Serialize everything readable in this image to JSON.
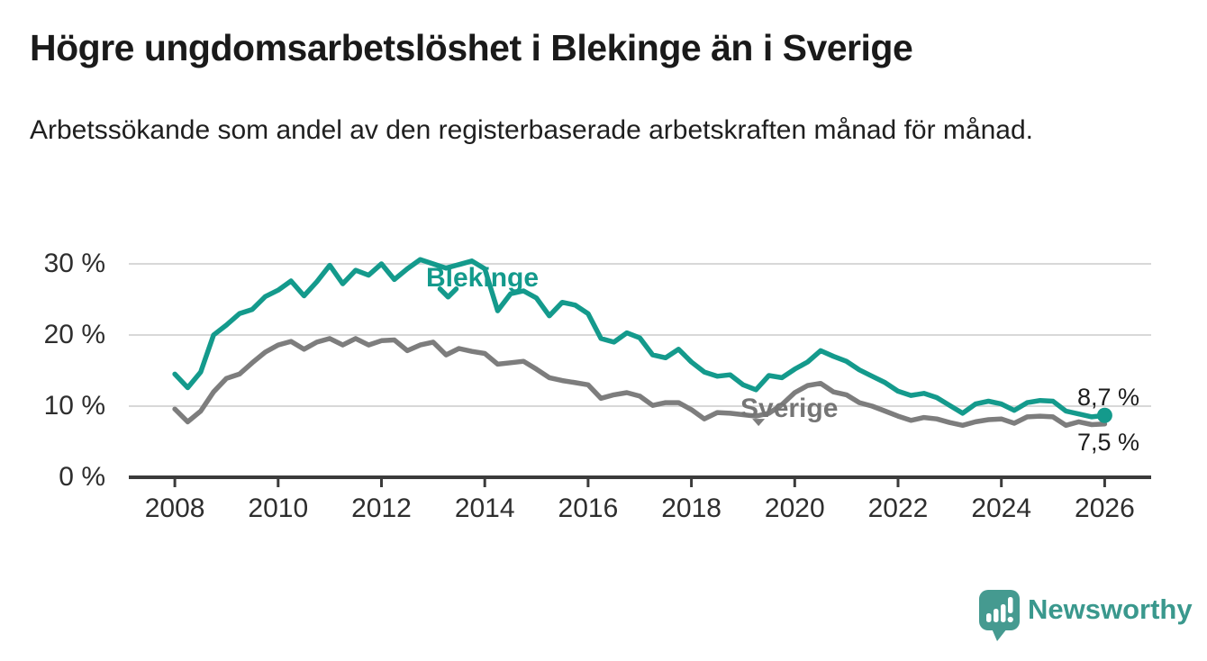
{
  "header": {
    "title": "Högre ungdomsarbetslöshet i Blekinge än i Sverige",
    "subtitle": "Arbetssökande som andel av den registerbaserade arbetskraften månad för månad."
  },
  "chart_data": {
    "type": "line",
    "title": "Högre ungdomsarbetslöshet i Blekinge än i Sverige",
    "subtitle": "Arbetssökande som andel av den registerbaserade arbetskraften månad för månad.",
    "xlabel": "",
    "ylabel": "",
    "unit": "%",
    "grid": "horizontal-light",
    "legend_position": "inline-labels",
    "x_start": 2008,
    "x_step": 0.25,
    "xlim": [
      2007.1,
      2026.9
    ],
    "ylim": [
      0,
      32
    ],
    "x_tick_years": [
      2008,
      2010,
      2012,
      2014,
      2016,
      2018,
      2020,
      2022,
      2024,
      2026
    ],
    "x_tick_labels": [
      "2008",
      "2010",
      "2012",
      "2014",
      "2016",
      "2018",
      "2020",
      "2022",
      "2024",
      "2026"
    ],
    "y_ticks": [
      {
        "value": 0,
        "label": "0 %"
      },
      {
        "value": 10,
        "label": "10 %"
      },
      {
        "value": 20,
        "label": "20 %"
      },
      {
        "value": 30,
        "label": "30 %"
      }
    ],
    "series": [
      {
        "name": "Blekinge",
        "color": "#149a8c",
        "end_label": "8,7 %",
        "end_value": 8.7,
        "end_marker": "dot",
        "pointer": {
          "x": 2013.29,
          "y": 25.6
        },
        "values": [
          14.5,
          12.6,
          14.8,
          20.0,
          21.4,
          23.0,
          23.6,
          25.4,
          26.3,
          27.6,
          25.5,
          27.5,
          29.8,
          27.2,
          29.1,
          28.4,
          30.0,
          27.8,
          29.3,
          30.6,
          30.0,
          29.4,
          29.9,
          30.4,
          29.3,
          23.4,
          25.8,
          26.2,
          25.2,
          22.7,
          24.6,
          24.2,
          23.0,
          19.5,
          19.0,
          20.3,
          19.6,
          17.2,
          16.8,
          18.0,
          16.2,
          14.8,
          14.2,
          14.4,
          13.0,
          12.3,
          14.3,
          14.0,
          15.2,
          16.2,
          17.8,
          17.0,
          16.3,
          15.1,
          14.2,
          13.3,
          12.1,
          11.5,
          11.8,
          11.2,
          10.1,
          9.0,
          10.3,
          10.7,
          10.3,
          9.4,
          10.5,
          10.8,
          10.7,
          9.3,
          8.9,
          8.5,
          8.7
        ]
      },
      {
        "name": "Sverige",
        "color": "#7d7d7d",
        "end_label": "7,5 %",
        "end_value": 7.5,
        "end_marker": "none",
        "pointer": {
          "x": 2019.3,
          "y": 7.7
        },
        "values": [
          9.6,
          7.8,
          9.3,
          12.0,
          13.9,
          14.5,
          16.1,
          17.6,
          18.6,
          19.1,
          18.0,
          19.0,
          19.5,
          18.6,
          19.5,
          18.6,
          19.2,
          19.3,
          17.8,
          18.6,
          19.0,
          17.2,
          18.1,
          17.7,
          17.4,
          15.9,
          16.1,
          16.3,
          15.2,
          14.0,
          13.6,
          13.3,
          13.0,
          11.1,
          11.6,
          11.9,
          11.4,
          10.1,
          10.5,
          10.5,
          9.5,
          8.2,
          9.1,
          9.0,
          8.8,
          8.6,
          9.0,
          10.2,
          11.9,
          12.9,
          13.2,
          12.0,
          11.6,
          10.5,
          10.0,
          9.3,
          8.6,
          8.0,
          8.4,
          8.2,
          7.7,
          7.3,
          7.8,
          8.1,
          8.2,
          7.6,
          8.5,
          8.6,
          8.5,
          7.3,
          7.8,
          7.4,
          7.5
        ]
      }
    ],
    "colors": {
      "grid": "#d8d8d8",
      "axis": "#3b3b3b",
      "tick_label": "#2e2e2e",
      "end_label": "#1d1d1d"
    }
  },
  "footer": {
    "brand": "Newsworthy",
    "brand_color": "#3a988d",
    "logo_icon": "bar-chart-speech-bubble",
    "logo_icon_color": "#459a90"
  }
}
